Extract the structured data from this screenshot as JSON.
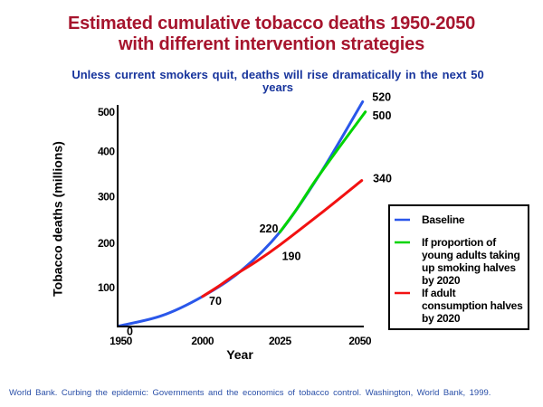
{
  "header": {
    "title_lines": [
      "Estimated cumulative tobacco deaths 1950-2050",
      "with different intervention strategies"
    ],
    "title_color": "#A6142D",
    "subtitle_lines": [
      "Unless current smokers quit, deaths will rise dramatically in the next 50",
      "years"
    ],
    "subtitle_color": "#17349C"
  },
  "chart_data": {
    "type": "line",
    "title": "Estimated cumulative tobacco deaths 1950-2050 with different intervention strategies",
    "subtitle": "Unless current smokers quit, deaths will rise dramatically in the next 50 years",
    "xlabel": "Year",
    "ylabel": "Tobacco deaths (millions)",
    "x_ticks": [
      "1950",
      "2000",
      "2025",
      "2050"
    ],
    "y_ticks": [
      "100",
      "200",
      "300",
      "400",
      "500"
    ],
    "ylim": [
      0,
      500
    ],
    "grid": false,
    "legend_position": "right",
    "axis_color": "#000000",
    "series": [
      {
        "name": "Baseline",
        "color": "#2A57EA",
        "points": [
          [
            1950,
            0
          ],
          [
            1975,
            25
          ],
          [
            2000,
            70
          ],
          [
            2012.5,
            130
          ],
          [
            2025,
            220
          ],
          [
            2037.5,
            355
          ],
          [
            2050,
            520
          ]
        ]
      },
      {
        "name": "If proportion of young adults taking up smoking halves by 2020",
        "color": "#00D400",
        "points": [
          [
            2025,
            220
          ],
          [
            2030,
            271
          ],
          [
            2036,
            339
          ],
          [
            2043,
            412
          ],
          [
            2050,
            500
          ]
        ]
      },
      {
        "name": "If adult consumption halves by 2020",
        "color": "#F21111",
        "points": [
          [
            2000,
            70
          ],
          [
            2005,
            93
          ],
          [
            2010,
            118
          ],
          [
            2017.5,
            152
          ],
          [
            2025,
            190
          ],
          [
            2037.5,
            262
          ],
          [
            2050,
            340
          ]
        ]
      }
    ],
    "data_labels": [
      {
        "text": "0",
        "series": "Baseline",
        "year": 1950,
        "value": 0
      },
      {
        "text": "70",
        "series": "Baseline",
        "year": 2000,
        "value": 70
      },
      {
        "text": "220",
        "series": "Baseline",
        "year": 2025,
        "value": 220
      },
      {
        "text": "190",
        "series": "If adult consumption halves by 2020",
        "year": 2025,
        "value": 190
      },
      {
        "text": "520",
        "series": "Baseline",
        "year": 2050,
        "value": 520
      },
      {
        "text": "500",
        "series": "If proportion of young adults taking up smoking halves by 2020",
        "year": 2050,
        "value": 500
      },
      {
        "text": "340",
        "series": "If adult consumption halves by 2020",
        "year": 2050,
        "value": 340
      }
    ]
  },
  "legend": {
    "items": [
      {
        "label_lines": [
          "Baseline"
        ],
        "color": "#2A57EA"
      },
      {
        "label_lines": [
          "If proportion of",
          "young adults taking",
          "up smoking halves",
          "by 2020"
        ],
        "color": "#00D400"
      },
      {
        "label_lines": [
          "If adult",
          "consumption halves",
          "by 2020"
        ],
        "color": "#F21111"
      }
    ]
  },
  "footer": {
    "source": "World Bank. Curbing the epidemic: Governments and the economics of tobacco control. Washington, World Bank, 1999.",
    "color": "#2B50A8"
  }
}
